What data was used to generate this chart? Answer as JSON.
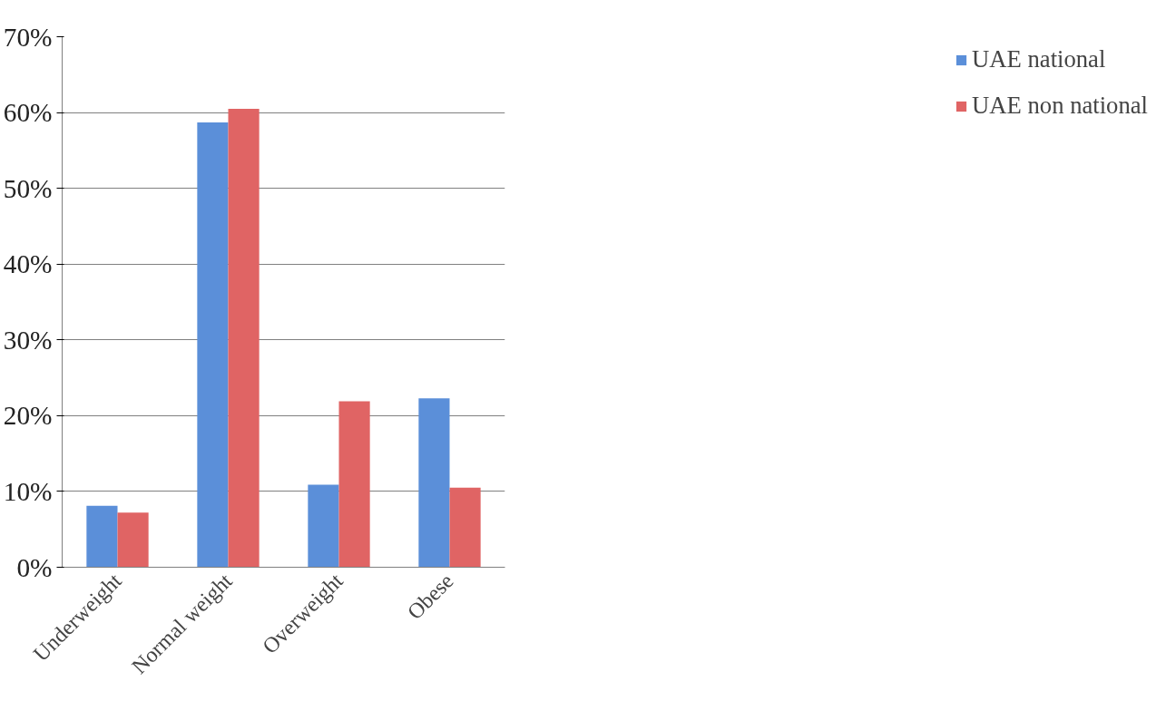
{
  "chart_data": {
    "type": "bar",
    "categories": [
      "Underweight",
      "Normal weight",
      "Overweight",
      "Obese"
    ],
    "series": [
      {
        "name": "UAE national",
        "color": "#5b8fd9",
        "values": [
          8.1,
          58.7,
          10.9,
          22.3
        ]
      },
      {
        "name": "UAE non national",
        "color": "#e06464",
        "values": [
          7.2,
          60.5,
          21.9,
          10.5
        ]
      }
    ],
    "ylim": [
      0,
      70
    ],
    "yticks": [
      {
        "value": 0,
        "label": "0%"
      },
      {
        "value": 10,
        "label": "10%"
      },
      {
        "value": 20,
        "label": "20%"
      },
      {
        "value": 30,
        "label": "30%"
      },
      {
        "value": 40,
        "label": "40%"
      },
      {
        "value": 50,
        "label": "50%"
      },
      {
        "value": 60,
        "label": "60%"
      },
      {
        "value": 70,
        "label": "70%"
      }
    ],
    "grid": "y",
    "legend": "right"
  }
}
